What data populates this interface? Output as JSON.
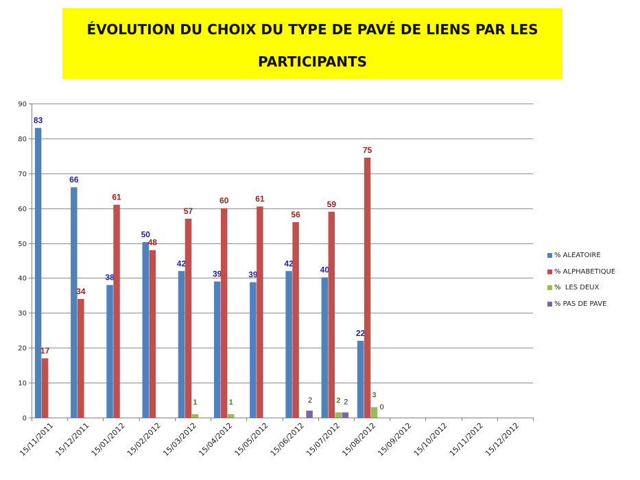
{
  "chart_data": {
    "type": "bar",
    "title_lines": [
      "ÉVOLUTION DU CHOIX DU TYPE DE PAVÉ DE LIENS PAR LES",
      "PARTICIPANTS"
    ],
    "categories": [
      "15/11/2011",
      "15/12/2011",
      "15/01/2012",
      "15/02/2012",
      "15/03/2012",
      "15/04/2012",
      "15/05/2012",
      "15/06/2012",
      "15/07/2012",
      "15/08/2012",
      "15/09/2012",
      "15/10/2012",
      "15/11/2012",
      "15/12/2012"
    ],
    "ylim": [
      0,
      90
    ],
    "yticks": [
      "0",
      "10",
      "20",
      "30",
      "40",
      "50",
      "60",
      "70",
      "80",
      "90"
    ],
    "grid": true,
    "legend_position": "right",
    "series": [
      {
        "name": "% ALEATOIRE",
        "color": "#4f81bd",
        "label_color": "#1f1fa8",
        "values": [
          83,
          66,
          38,
          50.3,
          42,
          39,
          38.8,
          42,
          40.2,
          22,
          null,
          null,
          null,
          null
        ],
        "labels": [
          "83",
          "66",
          "38",
          "50",
          "42",
          "39",
          "39",
          "42",
          "40",
          "22",
          null,
          null,
          null,
          null
        ]
      },
      {
        "name": "% ALPHABETIQUE",
        "color": "#c0504d",
        "label_color": "#a0201c",
        "values": [
          17,
          34,
          61,
          48,
          57,
          60,
          60.5,
          56,
          59,
          74.5,
          null,
          null,
          null,
          null
        ],
        "labels": [
          "17",
          "34",
          "61",
          "48",
          "57",
          "60",
          "61",
          "56",
          "59",
          "75",
          null,
          null,
          null,
          null
        ]
      },
      {
        "name": "%  LES DEUX",
        "color": "#9bbb59",
        "label_color": "#3c8a1e",
        "values": [
          null,
          null,
          null,
          null,
          1,
          1,
          null,
          null,
          1.5,
          3,
          null,
          null,
          null,
          null
        ],
        "labels": [
          null,
          null,
          null,
          null,
          "1",
          "1",
          null,
          null,
          "2",
          "3",
          null,
          null,
          null,
          null
        ]
      },
      {
        "name": "% PAS DE PAVE",
        "color": "#8064a2",
        "label_color": "#222222",
        "values": [
          null,
          null,
          null,
          null,
          null,
          null,
          null,
          2,
          1.5,
          0,
          null,
          null,
          null,
          null
        ],
        "labels": [
          null,
          null,
          null,
          null,
          null,
          null,
          null,
          "2",
          "2",
          "0",
          null,
          null,
          null,
          null
        ]
      }
    ]
  }
}
